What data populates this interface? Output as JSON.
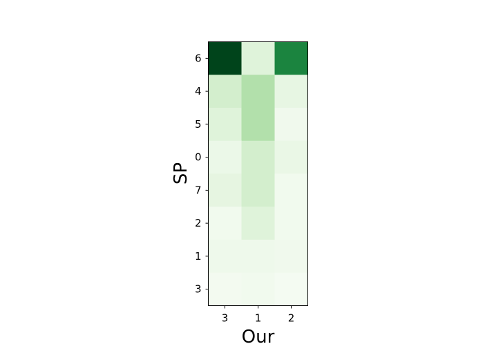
{
  "chart_data": {
    "type": "heatmap",
    "title": "",
    "xlabel": "Our",
    "ylabel": "SP",
    "x_categories": [
      "3",
      "1",
      "2"
    ],
    "y_categories": [
      "6",
      "4",
      "5",
      "0",
      "7",
      "2",
      "1",
      "3"
    ],
    "values": [
      [
        1.0,
        0.15,
        0.78
      ],
      [
        0.2,
        0.32,
        0.11
      ],
      [
        0.15,
        0.32,
        0.05
      ],
      [
        0.08,
        0.2,
        0.09
      ],
      [
        0.12,
        0.2,
        0.04
      ],
      [
        0.04,
        0.15,
        0.04
      ],
      [
        0.06,
        0.06,
        0.05
      ],
      [
        0.03,
        0.04,
        0.02
      ]
    ],
    "colormap": "Greens",
    "vmin": 0,
    "vmax": 1,
    "colorbar": false,
    "grid": false
  }
}
